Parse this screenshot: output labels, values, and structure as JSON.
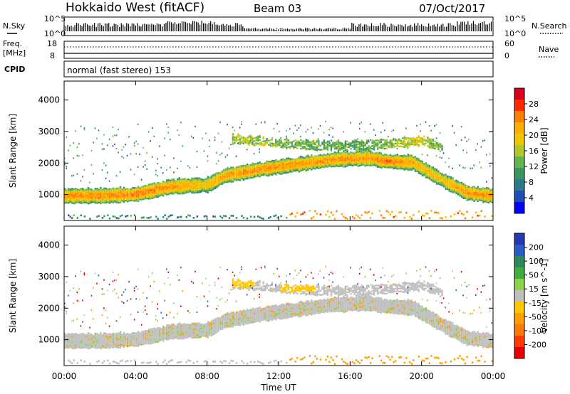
{
  "header": {
    "radar": "Hokkaido West (fitACF)",
    "beam": "Beam 03",
    "date": "07/Oct/2017"
  },
  "noise_panel": {
    "left_label": "N.Sky",
    "right_label": "N.Search",
    "axis_max": "10^5",
    "axis_min": "10^0"
  },
  "freq_panel": {
    "left_label": "Freq.",
    "left_unit": "[MHz]",
    "left_max": "18",
    "left_min": "8",
    "right_max": "60",
    "right_min": "0",
    "right_label": "Nave"
  },
  "cpid_panel": {
    "label": "CPID",
    "mode": "normal (fast stereo) 153"
  },
  "power_panel": {
    "ylabel": "Slant Range [km]",
    "colorbar_label": "Power [dB]",
    "colorbar_ticks": [
      "28",
      "24",
      "20",
      "16",
      "12",
      "8",
      "4"
    ],
    "colorbar_colors": [
      "#d8001e",
      "#ff2a00",
      "#ff7f00",
      "#ffae00",
      "#f0c800",
      "#b4c828",
      "#64b450",
      "#3c9664",
      "#2c7a8c",
      "#1f4fb4",
      "#0000ff"
    ]
  },
  "velocity_panel": {
    "ylabel": "Slant Range [km]",
    "colorbar_label": "Velocity [m s^-1]",
    "colorbar_ticks": [
      "200",
      "100",
      "50",
      "15",
      "-15",
      "-50",
      "-100",
      "-200"
    ],
    "colorbar_colors": [
      "#2837b4",
      "#285ac8",
      "#2e8b57",
      "#3fae3f",
      "#8cd24a",
      "#c0c0c0",
      "#ffc800",
      "#ffa000",
      "#ff7800",
      "#ff3c00",
      "#e60000"
    ]
  },
  "x_axis": {
    "label": "Time UT",
    "ticks": [
      "00:00",
      "04:00",
      "08:00",
      "12:00",
      "16:00",
      "20:00",
      "00:00"
    ]
  },
  "y_axis": {
    "ticks": [
      "1000",
      "2000",
      "3000",
      "4000"
    ]
  },
  "chart_data": [
    {
      "type": "heatmap",
      "title": "Power [dB]",
      "xlabel": "Time UT",
      "ylabel": "Slant Range [km]",
      "xlim_hours": [
        0,
        24
      ],
      "ylim_km": [
        180,
        4600
      ],
      "colorbar_range_db": [
        0,
        32
      ],
      "main_echo_band": [
        {
          "t": 0,
          "range_km": 950,
          "power_db": 24
        },
        {
          "t": 2,
          "range_km": 950,
          "power_db": 24
        },
        {
          "t": 4,
          "range_km": 1000,
          "power_db": 26
        },
        {
          "t": 6,
          "range_km": 1250,
          "power_db": 24
        },
        {
          "t": 8,
          "range_km": 1300,
          "power_db": 20
        },
        {
          "t": 9,
          "range_km": 1600,
          "power_db": 24
        },
        {
          "t": 11,
          "range_km": 1800,
          "power_db": 24
        },
        {
          "t": 13,
          "range_km": 1950,
          "power_db": 24
        },
        {
          "t": 15,
          "range_km": 2100,
          "power_db": 24
        },
        {
          "t": 17,
          "range_km": 2150,
          "power_db": 24
        },
        {
          "t": 18,
          "range_km": 2050,
          "power_db": 26
        },
        {
          "t": 19.5,
          "range_km": 2000,
          "power_db": 22
        },
        {
          "t": 21,
          "range_km": 1500,
          "power_db": 20
        },
        {
          "t": 22.5,
          "range_km": 1050,
          "power_db": 24
        },
        {
          "t": 24,
          "range_km": 950,
          "power_db": 24
        }
      ],
      "upper_echo_band": [
        {
          "t": 9.5,
          "range_km": 2750,
          "power_db": 16
        },
        {
          "t": 14,
          "range_km": 2550,
          "power_db": 12
        },
        {
          "t": 17,
          "range_km": 2550,
          "power_db": 12
        },
        {
          "t": 20,
          "range_km": 2700,
          "power_db": 18
        },
        {
          "t": 21,
          "range_km": 2500,
          "power_db": 12
        }
      ]
    },
    {
      "type": "heatmap",
      "title": "Velocity [m s^-1]",
      "xlabel": "Time UT",
      "ylabel": "Slant Range [km]",
      "xlim_hours": [
        0,
        24
      ],
      "ylim_km": [
        180,
        4600
      ],
      "colorbar_range_ms": [
        -250,
        250
      ],
      "dominant_velocity_ms": 0,
      "regions": [
        {
          "t_range": [
            9,
            10.5
          ],
          "range_km": [
            2700,
            2900
          ],
          "velocity_ms": -35
        },
        {
          "t_range": [
            12,
            14
          ],
          "range_km": [
            2550,
            2800
          ],
          "velocity_ms": -35
        },
        {
          "t_range": [
            13,
            24
          ],
          "range_km": [
            200,
            350
          ],
          "velocity_ms": -50
        }
      ]
    }
  ]
}
